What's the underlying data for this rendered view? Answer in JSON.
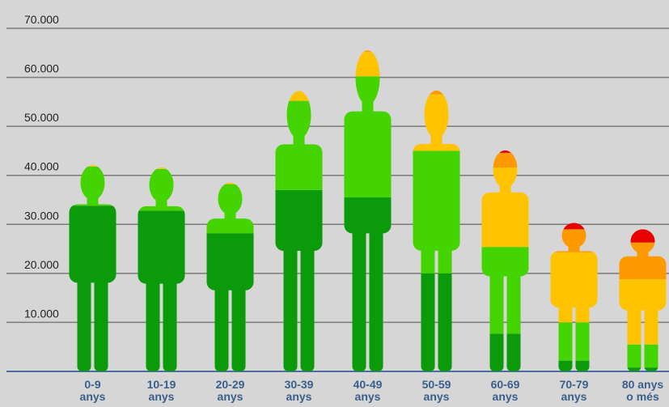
{
  "chart_data": {
    "type": "stacked-figure",
    "categories": [
      "0-9\nanys",
      "10-19\nanys",
      "20-29\nanys",
      "30-39\nanys",
      "40-49\nanys",
      "50-59\nanys",
      "60-69\nanys",
      "70-79\nanys",
      "80 anys\no més"
    ],
    "series": [
      {
        "color": "#0a9a0a",
        "values": [
          33800,
          32800,
          28200,
          37000,
          35500,
          20000,
          7700,
          2200,
          800
        ]
      },
      {
        "color": "#44d400",
        "values": [
          8000,
          8500,
          10000,
          18200,
          24700,
          25000,
          17700,
          7800,
          4700
        ]
      },
      {
        "color": "#ffc300",
        "values": [
          300,
          300,
          300,
          2000,
          5000,
          11500,
          16200,
          14300,
          13300
        ]
      },
      {
        "color": "#ff9900",
        "values": [
          0,
          0,
          0,
          0,
          300,
          800,
          3000,
          4700,
          7500
        ]
      },
      {
        "color": "#e60000",
        "values": [
          0,
          0,
          0,
          0,
          0,
          0,
          500,
          1300,
          2700
        ]
      }
    ],
    "ylim": [
      0,
      70000
    ],
    "yticks": [
      {
        "value": 10000,
        "label": "10.000"
      },
      {
        "value": 20000,
        "label": "20.000"
      },
      {
        "value": 30000,
        "label": "30.000"
      },
      {
        "value": 40000,
        "label": "40.000"
      },
      {
        "value": 50000,
        "label": "50.000"
      },
      {
        "value": 60000,
        "label": "60.000"
      },
      {
        "value": 70000,
        "label": "70.000"
      }
    ],
    "grid": true
  }
}
